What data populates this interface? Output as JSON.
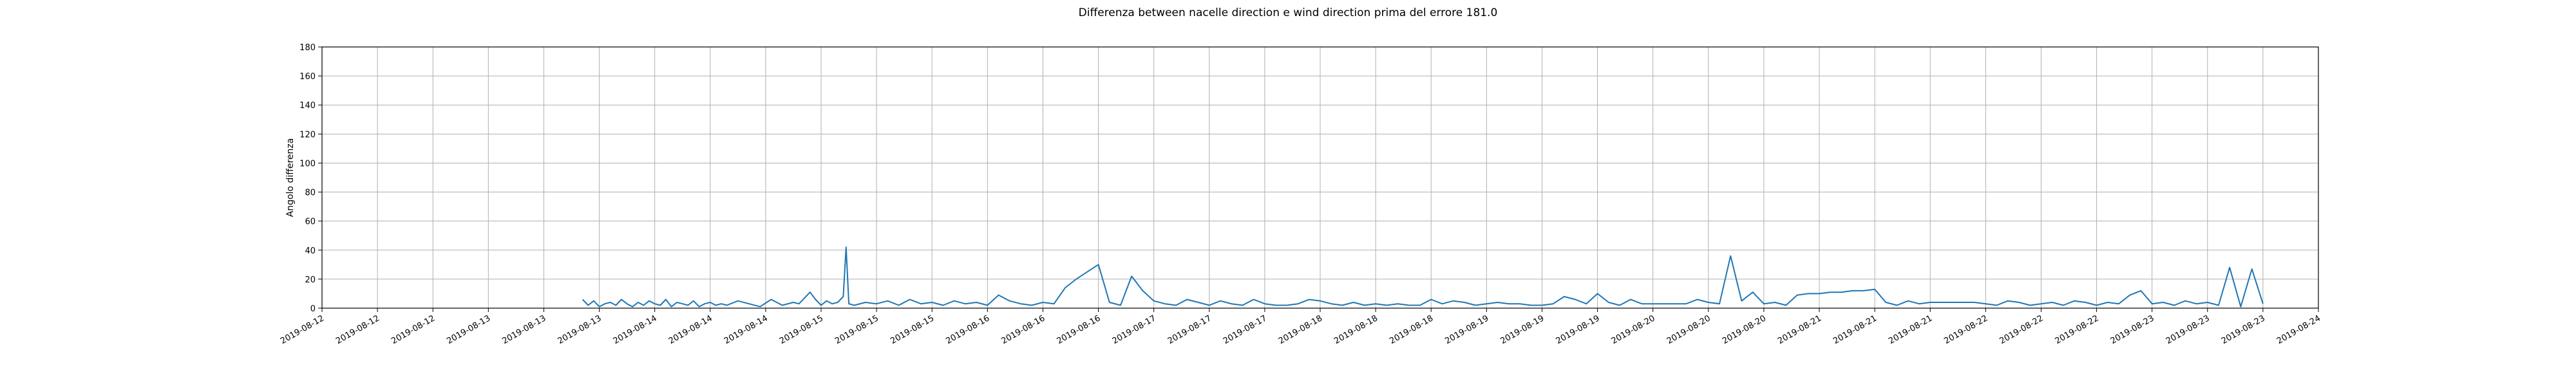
{
  "chart_data": {
    "type": "line",
    "title": "Differenza between nacelle direction e wind direction prima del errore 181.0",
    "xlabel": "",
    "ylabel": "Angolo differenza",
    "ylim": [
      0,
      180
    ],
    "yticks": [
      0,
      20,
      40,
      60,
      80,
      100,
      120,
      140,
      160,
      180
    ],
    "grid": true,
    "line_color": "#1f77b4",
    "xticks": [
      "2019-08-12",
      "2019-08-12",
      "2019-08-12",
      "2019-08-13",
      "2019-08-13",
      "2019-08-13",
      "2019-08-14",
      "2019-08-14",
      "2019-08-14",
      "2019-08-15",
      "2019-08-15",
      "2019-08-15",
      "2019-08-16",
      "2019-08-16",
      "2019-08-16",
      "2019-08-17",
      "2019-08-17",
      "2019-08-17",
      "2019-08-18",
      "2019-08-18",
      "2019-08-18",
      "2019-08-19",
      "2019-08-19",
      "2019-08-19",
      "2019-08-20",
      "2019-08-20",
      "2019-08-20",
      "2019-08-21",
      "2019-08-21",
      "2019-08-21",
      "2019-08-22",
      "2019-08-22",
      "2019-08-22",
      "2019-08-23",
      "2019-08-23",
      "2019-08-23",
      "2019-08-24"
    ],
    "xlim_ticks": [
      0,
      36
    ],
    "series": [
      {
        "name": "",
        "x": [
          4.7,
          4.8,
          4.9,
          5.0,
          5.1,
          5.2,
          5.3,
          5.4,
          5.5,
          5.6,
          5.7,
          5.8,
          5.9,
          6.0,
          6.1,
          6.2,
          6.3,
          6.4,
          6.5,
          6.6,
          6.7,
          6.8,
          6.9,
          7.0,
          7.1,
          7.2,
          7.3,
          7.5,
          7.7,
          7.9,
          8.1,
          8.3,
          8.5,
          8.6,
          8.8,
          8.9,
          9.0,
          9.1,
          9.2,
          9.3,
          9.4,
          9.45,
          9.5,
          9.6,
          9.8,
          10.0,
          10.2,
          10.4,
          10.6,
          10.8,
          11.0,
          11.2,
          11.4,
          11.6,
          11.8,
          12.0,
          12.2,
          12.4,
          12.6,
          12.8,
          13.0,
          13.2,
          13.4,
          13.6,
          13.8,
          14.0,
          14.2,
          14.4,
          14.6,
          14.8,
          15.0,
          15.2,
          15.4,
          15.6,
          15.8,
          16.0,
          16.2,
          16.4,
          16.6,
          16.8,
          17.0,
          17.2,
          17.4,
          17.6,
          17.8,
          18.0,
          18.2,
          18.4,
          18.6,
          18.8,
          19.0,
          19.2,
          19.4,
          19.6,
          19.8,
          20.0,
          20.2,
          20.4,
          20.6,
          20.8,
          21.0,
          21.2,
          21.4,
          21.6,
          21.8,
          22.0,
          22.2,
          22.4,
          22.6,
          22.8,
          23.0,
          23.2,
          23.4,
          23.6,
          23.8,
          24.0,
          24.2,
          24.4,
          24.6,
          24.8,
          25.0,
          25.2,
          25.4,
          25.6,
          25.8,
          26.0,
          26.2,
          26.4,
          26.6,
          26.8,
          27.0,
          27.2,
          27.4,
          27.6,
          27.8,
          28.0,
          28.2,
          28.4,
          28.6,
          28.8,
          29.0,
          29.2,
          29.4,
          29.6,
          29.8,
          30.0,
          30.2,
          30.4,
          30.6,
          30.8,
          31.0,
          31.2,
          31.4,
          31.6,
          31.8,
          32.0,
          32.2,
          32.4,
          32.6,
          32.8,
          33.0,
          33.2,
          33.4,
          33.6,
          33.8,
          34.0,
          34.2,
          34.4,
          34.6,
          34.8,
          35.0
        ],
        "y": [
          6,
          2,
          5,
          1,
          3,
          4,
          2,
          6,
          3,
          1,
          4,
          2,
          5,
          3,
          2,
          6,
          1,
          4,
          3,
          2,
          5,
          1,
          3,
          4,
          2,
          3,
          2,
          5,
          3,
          1,
          6,
          2,
          4,
          3,
          11,
          6,
          2,
          5,
          3,
          4,
          8,
          42,
          3,
          2,
          4,
          3,
          5,
          2,
          6,
          3,
          4,
          2,
          5,
          3,
          4,
          2,
          9,
          5,
          3,
          2,
          4,
          3,
          14,
          20,
          25,
          30,
          4,
          2,
          22,
          12,
          5,
          3,
          2,
          6,
          4,
          2,
          5,
          3,
          2,
          6,
          3,
          2,
          2,
          3,
          6,
          5,
          3,
          2,
          4,
          2,
          3,
          2,
          3,
          2,
          2,
          6,
          3,
          5,
          4,
          2,
          3,
          4,
          3,
          3,
          2,
          2,
          3,
          8,
          6,
          3,
          10,
          4,
          2,
          6,
          3,
          3,
          3,
          3,
          3,
          6,
          4,
          3,
          36,
          5,
          11,
          3,
          4,
          2,
          9,
          10,
          10,
          11,
          11,
          12,
          12,
          13,
          4,
          2,
          5,
          3,
          4,
          4,
          4,
          4,
          4,
          3,
          2,
          5,
          4,
          2,
          3,
          4,
          2,
          5,
          4,
          2,
          4,
          3,
          9,
          12,
          3,
          4,
          2,
          5,
          3,
          4,
          2,
          28,
          1,
          27,
          3
        ]
      }
    ]
  }
}
